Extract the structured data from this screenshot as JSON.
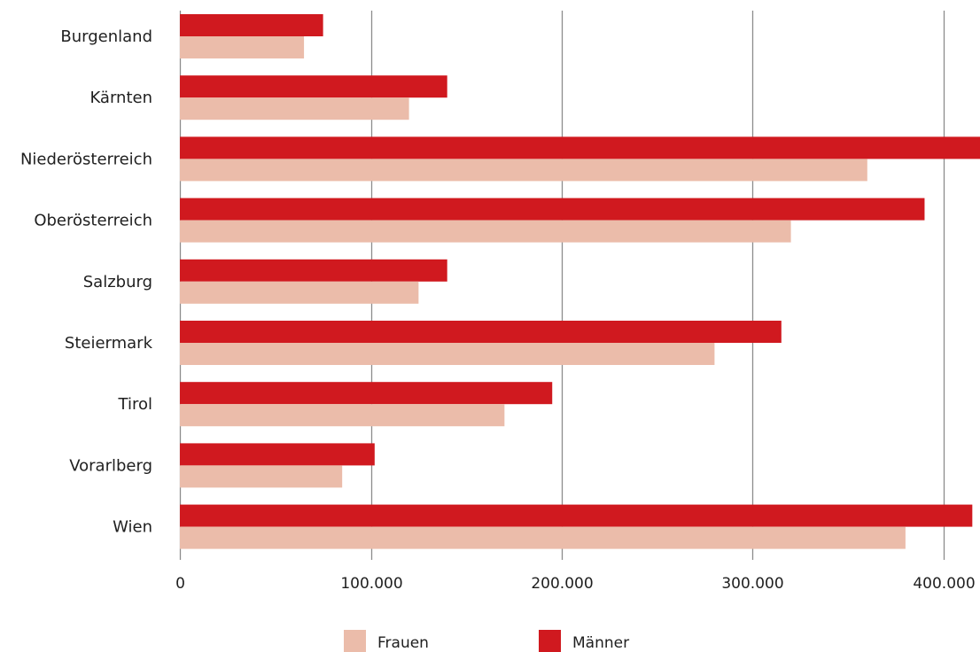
{
  "chart_data": {
    "type": "bar",
    "orientation": "horizontal",
    "categories": [
      "Burgenland",
      "Kärnten",
      "Niederösterreich",
      "Oberösterreich",
      "Salzburg",
      "Steiermark",
      "Tirol",
      "Vorarlberg",
      "Wien"
    ],
    "series": [
      {
        "name": "Männer",
        "color": "#d0191f",
        "values": [
          75000,
          140000,
          420000,
          390000,
          140000,
          315000,
          195000,
          102000,
          415000
        ]
      },
      {
        "name": "Frauen",
        "color": "#ebbcaa",
        "values": [
          65000,
          120000,
          360000,
          320000,
          125000,
          280000,
          170000,
          85000,
          380000
        ]
      }
    ],
    "xlim": [
      0,
      420000
    ],
    "xticks": [
      0,
      100000,
      200000,
      300000,
      400000
    ],
    "xtick_labels": [
      "0",
      "100.000",
      "200.000",
      "300.000",
      "400.000"
    ],
    "xlabel": "",
    "ylabel": "",
    "title": "",
    "grid": "vertical",
    "gridline_color": "#8c8c8c",
    "legend": {
      "position": "bottom",
      "items": [
        {
          "label": "Frauen",
          "color": "#ebbcaa"
        },
        {
          "label": "Männer",
          "color": "#d0191f"
        }
      ]
    }
  }
}
